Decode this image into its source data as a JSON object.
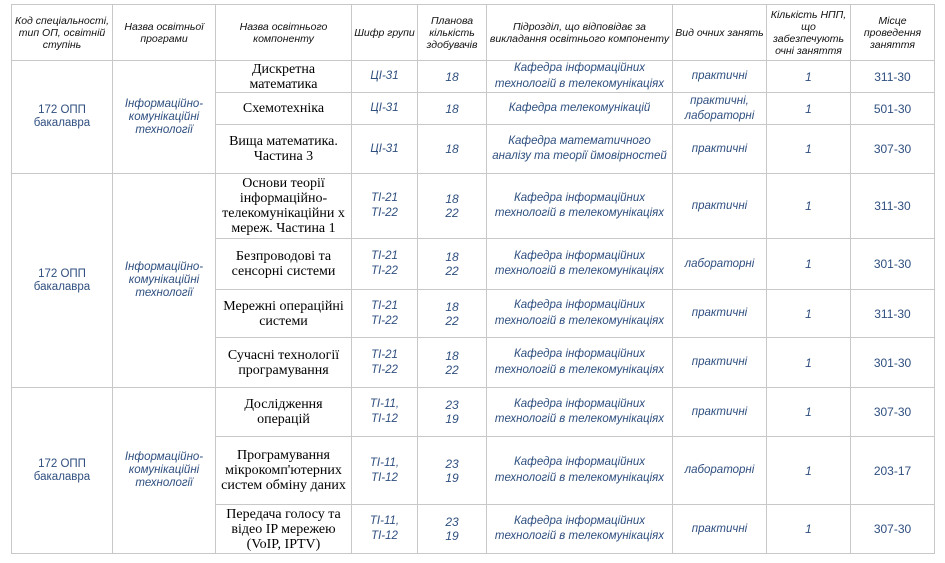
{
  "headers": {
    "code": "Код спеціальності, тип ОП, освітній ступінь",
    "program": "Назва освітньої програми",
    "component": "Назва освітнього компоненту",
    "group": "Шифр групи",
    "planned": "Планова кількість здобувачів",
    "department": "Підрозділ, що відповідає за викладання освітнього компоненту",
    "lesson_type": "Вид очних занять",
    "staff": "Кількість НПП, що забезпечують очні заняття",
    "location": "Місце проведення заняття"
  },
  "blocks": [
    {
      "code": "172 ОПП бакалавра",
      "program": "Інформаційно-комунікаційні технології",
      "rows": [
        {
          "component": "Дискретна математика",
          "groups": [
            "ЦІ-31"
          ],
          "planned": [
            "18"
          ],
          "department": "Кафедра інформаційних технологій в телекомунікаціях",
          "type": "практичні",
          "staff": "1",
          "room": "311-30"
        },
        {
          "component": "Схемотехніка",
          "groups": [
            "ЦІ-31"
          ],
          "planned": [
            "18"
          ],
          "department": "Кафедра телекомунікацій",
          "type": "практичні, лабораторні",
          "staff": "1",
          "room": "501-30"
        },
        {
          "component": "Вища математика. Частина 3",
          "groups": [
            "ЦІ-31"
          ],
          "planned": [
            "18"
          ],
          "department": "Кафедра математичного аналізу та теорії ймовірностей",
          "type": "практичні",
          "staff": "1",
          "room": "307-30"
        }
      ]
    },
    {
      "code": "172 ОПП бакалавра",
      "program": "Інформаційно-комунікаційні технології",
      "rows": [
        {
          "component": "Основи теорії інформаційно-телекомунікаційни х мереж. Частина 1",
          "groups": [
            "ТІ-21",
            "ТІ-22"
          ],
          "planned": [
            "18",
            "22"
          ],
          "department": "Кафедра інформаційних технологій в телекомунікаціях",
          "type": "практичні",
          "staff": "1",
          "room": "311-30"
        },
        {
          "component": "Безпроводові та сенсорні системи",
          "groups": [
            "ТІ-21",
            "ТІ-22"
          ],
          "planned": [
            "18",
            "22"
          ],
          "department": "Кафедра інформаційних технологій в телекомунікаціях",
          "type": "лабораторні",
          "staff": "1",
          "room": "301-30"
        },
        {
          "component": "Мережні операційні системи",
          "groups": [
            "ТІ-21",
            "ТІ-22"
          ],
          "planned": [
            "18",
            "22"
          ],
          "department": "Кафедра інформаційних технологій в телекомунікаціях",
          "type": "практичні",
          "staff": "1",
          "room": "311-30"
        },
        {
          "component": "Сучасні технології програмування",
          "groups": [
            "ТІ-21",
            "ТІ-22"
          ],
          "planned": [
            "18",
            "22"
          ],
          "department": "Кафедра інформаційних технологій в телекомунікаціях",
          "type": "практичні",
          "staff": "1",
          "room": "301-30"
        }
      ]
    },
    {
      "code": "172 ОПП бакалавра",
      "program": "Інформаційно-комунікаційні технології",
      "rows": [
        {
          "component": "Дослідження операцій",
          "groups": [
            "ТІ-11,",
            "ТІ-12"
          ],
          "planned": [
            "23",
            "19"
          ],
          "department": "Кафедра інформаційних технологій в телекомунікаціях",
          "type": "практичні",
          "staff": "1",
          "room": "307-30"
        },
        {
          "component": "Програмування мікрокомп'ютерних систем обміну даних",
          "groups": [
            "ТІ-11,",
            "ТІ-12"
          ],
          "planned": [
            "23",
            "19"
          ],
          "department": "Кафедра інформаційних технологій в телекомунікаціях",
          "type": "лабораторні",
          "staff": "1",
          "room": "203-17"
        },
        {
          "component": "Передача голосу та відео IP мережею (VoIP, IPTV)",
          "groups": [
            "ТІ-11,",
            "ТІ-12"
          ],
          "planned": [
            "23",
            "19"
          ],
          "department": "Кафедра інформаційних технологій в телекомунікаціях",
          "type": "практичні",
          "staff": "1",
          "room": "307-30"
        }
      ]
    }
  ]
}
